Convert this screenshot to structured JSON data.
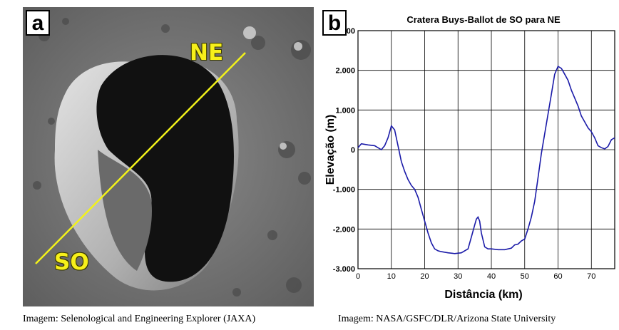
{
  "panel_a": {
    "letter": "a",
    "label_ne": "NE",
    "label_so": "SO",
    "caption": "Imagem: Selenological and Engineering Explorer (JAXA)",
    "colors": {
      "profile_line": "#f2f21a",
      "labels": "#f7f01a"
    }
  },
  "panel_b": {
    "letter": "b",
    "caption": "Imagem: NASA/GSFC/DLR/Arizona State University"
  },
  "chart_data": {
    "type": "line",
    "title": "Cratera Buys-Ballot de SO para NE",
    "xlabel": "Distância (km)",
    "ylabel": "Elevação (m)",
    "xlim": [
      0,
      77
    ],
    "ylim": [
      -3000,
      3000
    ],
    "x_ticks": [
      "0",
      "10",
      "20",
      "30",
      "40",
      "50",
      "60",
      "70"
    ],
    "y_ticks": [
      "3.000",
      "2.000",
      "1.000",
      "0",
      "-1.000",
      "-2.000",
      "-3.000"
    ],
    "grid": true,
    "line_color": "#1a1aa8",
    "series": [
      {
        "x": [
          0,
          1,
          3,
          5,
          7,
          8,
          9,
          10,
          11,
          12,
          13,
          14,
          15,
          16,
          17,
          18,
          19,
          20,
          21,
          22,
          23,
          24,
          25,
          27,
          29,
          31,
          33,
          34,
          35,
          35.5,
          36,
          36.5,
          37,
          38,
          39,
          40,
          42,
          44,
          46,
          47,
          48,
          49,
          50,
          51,
          52,
          53,
          54,
          55,
          56,
          57,
          58,
          59,
          60,
          61,
          62,
          63,
          64,
          65,
          66,
          67,
          68,
          69,
          70,
          71,
          72,
          73,
          74,
          75,
          76,
          77
        ],
        "y": [
          50,
          150,
          120,
          100,
          0,
          100,
          300,
          600,
          500,
          100,
          -300,
          -550,
          -750,
          -900,
          -1000,
          -1200,
          -1500,
          -1800,
          -2100,
          -2350,
          -2500,
          -2550,
          -2570,
          -2600,
          -2620,
          -2600,
          -2500,
          -2200,
          -1900,
          -1750,
          -1700,
          -1800,
          -2100,
          -2450,
          -2500,
          -2500,
          -2520,
          -2520,
          -2480,
          -2400,
          -2380,
          -2300,
          -2250,
          -2000,
          -1700,
          -1300,
          -700,
          -100,
          400,
          900,
          1400,
          1900,
          2100,
          2050,
          1900,
          1750,
          1500,
          1300,
          1100,
          850,
          700,
          550,
          450,
          300,
          100,
          50,
          20,
          80,
          250,
          300
        ]
      }
    ]
  }
}
